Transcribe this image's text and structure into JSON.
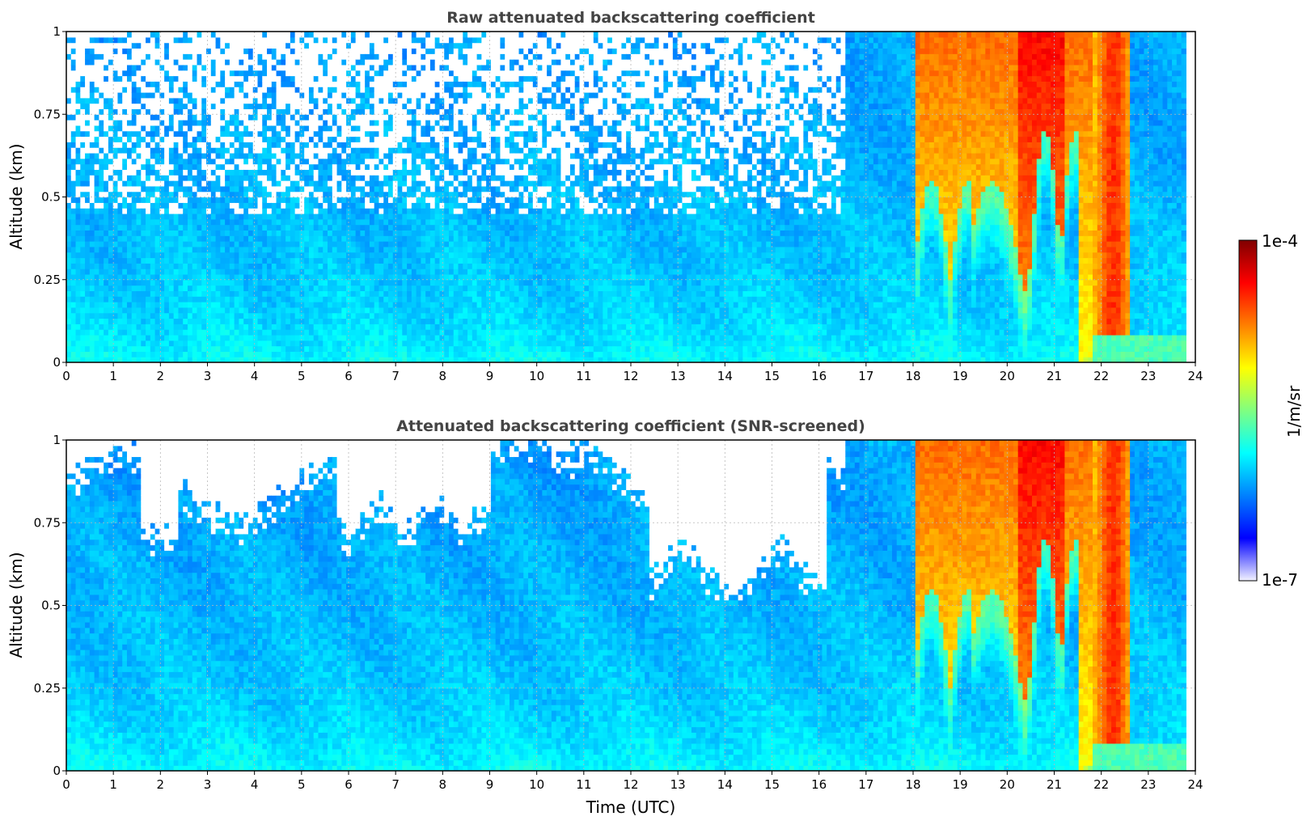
{
  "chart_data": [
    {
      "type": "heatmap",
      "title": "Raw attenuated backscattering coefficient",
      "xlabel": "",
      "ylabel": "Altitude (km)",
      "xlim": [
        0,
        24
      ],
      "ylim": [
        0,
        1
      ],
      "xticks": [
        "0",
        "1",
        "2",
        "3",
        "4",
        "5",
        "6",
        "7",
        "8",
        "9",
        "10",
        "11",
        "12",
        "13",
        "14",
        "15",
        "16",
        "17",
        "18",
        "19",
        "20",
        "21",
        "22",
        "23",
        "24"
      ],
      "yticks": [
        "0",
        "0.25",
        "0.5",
        "0.75",
        "1"
      ],
      "grid": true,
      "screened": false,
      "data_end_time": 23.8,
      "fog_onset_time": 16.6
    },
    {
      "type": "heatmap",
      "title": "Attenuated backscattering coefficient (SNR-screened)",
      "xlabel": "Time (UTC)",
      "ylabel": "Altitude (km)",
      "xlim": [
        0,
        24
      ],
      "ylim": [
        0,
        1
      ],
      "xticks": [
        "0",
        "1",
        "2",
        "3",
        "4",
        "5",
        "6",
        "7",
        "8",
        "9",
        "10",
        "11",
        "12",
        "13",
        "14",
        "15",
        "16",
        "17",
        "18",
        "19",
        "20",
        "21",
        "22",
        "23",
        "24"
      ],
      "yticks": [
        "0",
        "0.25",
        "0.5",
        "0.75",
        "1"
      ],
      "grid": true,
      "screened": true,
      "data_end_time": 23.8,
      "fog_onset_time": 16.6
    }
  ],
  "colorbar": {
    "label": "1/m/sr",
    "min_label": "1e-7",
    "max_label": "1e-4",
    "scale": "log",
    "colormap": "jet",
    "colors": [
      "#f2f2ff",
      "#0000ff",
      "#0080ff",
      "#00ffff",
      "#80ff80",
      "#ffff00",
      "#ff8000",
      "#ff0000",
      "#800000"
    ]
  }
}
